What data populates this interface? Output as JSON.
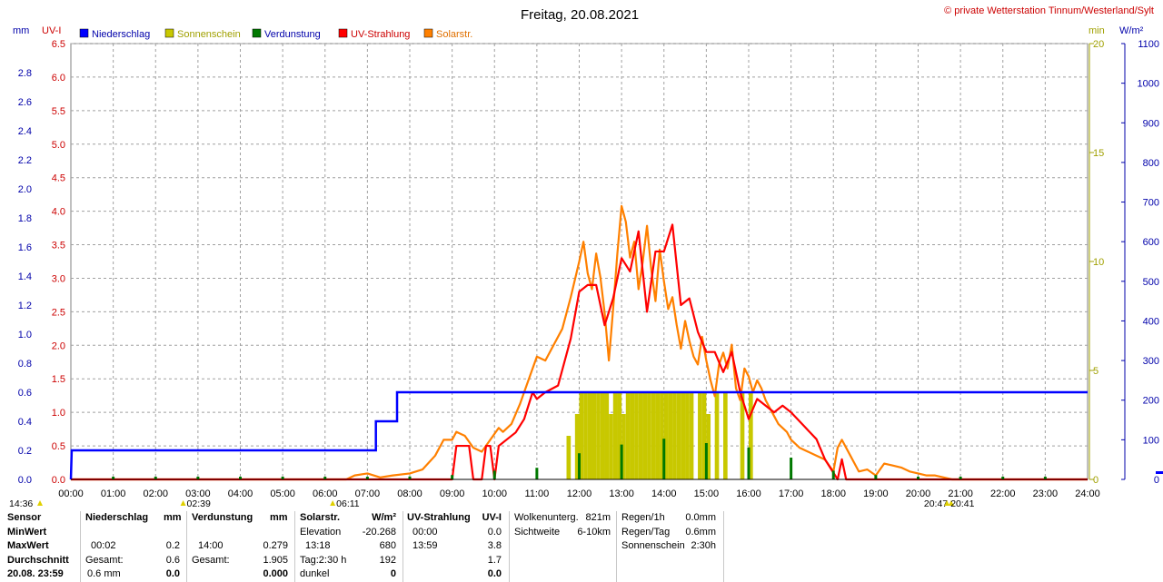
{
  "title": "Freitag, 20.08.2021",
  "copyright": "© private Wetterstation Tinnum/Westerland/Sylt",
  "units": {
    "mm": "mm",
    "uvi": "UV-I",
    "min": "min",
    "wm2": "W/m²"
  },
  "colors": {
    "rain": "#0000ff",
    "sun": "#c8c800",
    "evap": "#007800",
    "uv": "#ff0000",
    "solar": "#ff8000",
    "grid": "#a0a0a0",
    "axis_left": "#0000aa",
    "axis_uv": "#cc0000"
  },
  "legend": [
    {
      "label": "Niederschlag",
      "color": "#0000ff",
      "text_color": "#0000aa"
    },
    {
      "label": "Sonnenschein",
      "color": "#c8c800",
      "text_color": "#a0a000"
    },
    {
      "label": "Verdunstung",
      "color": "#007800",
      "text_color": "#0000aa"
    },
    {
      "label": "UV-Strahlung",
      "color": "#ff0000",
      "text_color": "#cc0000"
    },
    {
      "label": "Solarstr.",
      "color": "#ff8000",
      "text_color": "#e07000"
    }
  ],
  "markers": [
    {
      "time": "14:36",
      "pos": "left-edge"
    },
    {
      "time": "02:39",
      "at_hour": 2.65
    },
    {
      "time": "06:11",
      "at_hour": 6.18
    },
    {
      "time": "20:47",
      "at_hour": 20.78
    },
    {
      "time": "20:41",
      "at_hour": 20.68
    }
  ],
  "chart_data": {
    "type": "line",
    "x_ticks": [
      "00:00",
      "01:00",
      "02:00",
      "03:00",
      "04:00",
      "05:00",
      "06:00",
      "07:00",
      "08:00",
      "09:00",
      "10:00",
      "11:00",
      "12:00",
      "13:00",
      "14:00",
      "15:00",
      "16:00",
      "17:00",
      "18:00",
      "19:00",
      "20:00",
      "21:00",
      "22:00",
      "23:00",
      "24:00"
    ],
    "xlim": [
      0,
      24
    ],
    "axes": {
      "rain_mm": {
        "ylim": [
          0,
          3.0
        ],
        "ticks": [
          "0.0",
          "0.2",
          "0.4",
          "0.6",
          "0.8",
          "1.0",
          "1.2",
          "1.4",
          "1.6",
          "1.8",
          "2.0",
          "2.2",
          "2.4",
          "2.6",
          "2.8"
        ]
      },
      "uv_index": {
        "ylim": [
          0,
          6.5
        ],
        "ticks": [
          "0.0",
          "0.5",
          "1.0",
          "1.5",
          "2.0",
          "2.5",
          "3.0",
          "3.5",
          "4.0",
          "4.5",
          "5.0",
          "5.5",
          "6.0",
          "6.5"
        ]
      },
      "sun_min": {
        "ylim": [
          0,
          20
        ],
        "ticks": [
          "0",
          "5",
          "10",
          "15",
          "20"
        ]
      },
      "solar_wm2": {
        "ylim": [
          0,
          1100
        ],
        "ticks": [
          "0",
          "100",
          "200",
          "300",
          "400",
          "500",
          "600",
          "700",
          "800",
          "900",
          "1000",
          "1100"
        ]
      }
    },
    "series": [
      {
        "name": "Niederschlag",
        "type": "step",
        "x": [
          0,
          0.02,
          7.2,
          7.2,
          7.7,
          7.7,
          24
        ],
        "y": [
          0,
          0.2,
          0.2,
          0.4,
          0.4,
          0.6,
          0.6
        ]
      },
      {
        "name": "Solarstr.",
        "type": "line",
        "x": [
          0,
          6.5,
          6.7,
          7.0,
          7.3,
          7.6,
          8.0,
          8.3,
          8.6,
          8.8,
          9.0,
          9.1,
          9.3,
          9.5,
          9.7,
          9.9,
          10.1,
          10.2,
          10.4,
          10.6,
          10.8,
          11.0,
          11.2,
          11.4,
          11.6,
          11.8,
          12.0,
          12.1,
          12.2,
          12.3,
          12.4,
          12.5,
          12.6,
          12.7,
          12.8,
          12.9,
          13.0,
          13.1,
          13.2,
          13.3,
          13.4,
          13.5,
          13.6,
          13.7,
          13.8,
          13.9,
          14.0,
          14.1,
          14.2,
          14.3,
          14.4,
          14.5,
          14.6,
          14.7,
          14.8,
          14.9,
          15.0,
          15.1,
          15.2,
          15.3,
          15.4,
          15.5,
          15.6,
          15.7,
          15.8,
          15.9,
          16.0,
          16.1,
          16.2,
          16.3,
          16.4,
          16.5,
          16.6,
          16.7,
          16.8,
          16.9,
          17.0,
          17.2,
          17.4,
          17.6,
          17.8,
          18.0,
          18.1,
          18.2,
          18.4,
          18.6,
          18.8,
          19.0,
          19.2,
          19.4,
          19.6,
          19.8,
          20.0,
          20.2,
          20.4,
          20.6,
          20.8,
          24
        ],
        "y": [
          0,
          0,
          10,
          15,
          5,
          10,
          15,
          25,
          60,
          100,
          100,
          120,
          110,
          80,
          70,
          100,
          130,
          120,
          140,
          190,
          250,
          310,
          300,
          340,
          380,
          460,
          550,
          600,
          520,
          480,
          570,
          510,
          420,
          300,
          430,
          570,
          690,
          650,
          560,
          600,
          480,
          550,
          640,
          530,
          450,
          580,
          500,
          430,
          460,
          390,
          330,
          400,
          350,
          310,
          290,
          360,
          300,
          250,
          210,
          290,
          320,
          280,
          340,
          230,
          200,
          280,
          260,
          220,
          250,
          230,
          200,
          180,
          160,
          140,
          130,
          120,
          100,
          80,
          70,
          60,
          50,
          20,
          80,
          100,
          60,
          20,
          25,
          10,
          40,
          35,
          30,
          20,
          15,
          10,
          10,
          5,
          0,
          0
        ]
      },
      {
        "name": "UV-Strahlung",
        "type": "line",
        "x": [
          0,
          9.0,
          9.1,
          9.4,
          9.5,
          9.7,
          9.8,
          9.9,
          10.0,
          10.1,
          10.3,
          10.5,
          10.7,
          10.9,
          11.0,
          11.2,
          11.5,
          11.8,
          12.0,
          12.2,
          12.4,
          12.6,
          12.8,
          13.0,
          13.2,
          13.4,
          13.6,
          13.8,
          14.0,
          14.2,
          14.4,
          14.6,
          14.8,
          15.0,
          15.2,
          15.4,
          15.6,
          15.8,
          16.0,
          16.2,
          16.4,
          16.6,
          16.8,
          17.0,
          17.3,
          17.6,
          17.8,
          17.9,
          18.0,
          18.1,
          18.2,
          18.3,
          24
        ],
        "y": [
          0,
          0,
          0.5,
          0.5,
          0.0,
          0.0,
          0.5,
          0.5,
          0.0,
          0.5,
          0.6,
          0.7,
          0.9,
          1.3,
          1.2,
          1.3,
          1.4,
          2.1,
          2.8,
          2.9,
          2.9,
          2.3,
          2.7,
          3.3,
          3.1,
          3.7,
          2.5,
          3.4,
          3.4,
          3.8,
          2.6,
          2.7,
          2.2,
          1.9,
          1.9,
          1.6,
          1.9,
          1.3,
          0.9,
          1.2,
          1.1,
          1.0,
          1.1,
          1.0,
          0.8,
          0.6,
          0.3,
          0.2,
          0.1,
          0.0,
          0.3,
          0.0,
          0
        ]
      },
      {
        "name": "Verdunstung",
        "type": "spikes",
        "x": [
          1.0,
          2.0,
          3.0,
          4.0,
          5.0,
          6.0,
          7.0,
          8.0,
          9.0,
          10.0,
          11.0,
          12.0,
          13.0,
          14.0,
          15.0,
          16.0,
          17.0,
          18.0,
          19.0,
          20.0,
          21.0,
          22.0,
          23.0
        ],
        "y": [
          0.01,
          0.01,
          0.01,
          0.01,
          0.01,
          0.01,
          0.01,
          0.02,
          0.03,
          0.06,
          0.08,
          0.18,
          0.24,
          0.28,
          0.25,
          0.22,
          0.15,
          0.06,
          0.03,
          0.01,
          0.01,
          0.01,
          0.01
        ]
      },
      {
        "name": "Sonnenschein",
        "type": "blocks",
        "x": [
          11.7,
          11.9,
          12.0,
          12.1,
          12.2,
          12.3,
          12.4,
          12.5,
          12.6,
          12.7,
          12.8,
          12.9,
          13.0,
          13.1,
          13.2,
          13.3,
          13.4,
          13.5,
          13.6,
          13.7,
          13.8,
          13.9,
          14.0,
          14.1,
          14.2,
          14.3,
          14.4,
          14.5,
          14.6,
          14.8,
          14.9,
          15.0,
          15.2,
          15.4,
          15.8,
          16.0
        ],
        "y": [
          2,
          3,
          4,
          4,
          4,
          4,
          4,
          4,
          4,
          3,
          4,
          4,
          3,
          4,
          4,
          4,
          4,
          4,
          4,
          4,
          4,
          4,
          4,
          4,
          4,
          4,
          4,
          4,
          4,
          4,
          4,
          3,
          4,
          4,
          4,
          4
        ]
      }
    ]
  },
  "stats": {
    "headers": {
      "sensor": "Sensor",
      "rain": "Niederschlag",
      "rain_unit": "mm",
      "evap": "Verdunstung",
      "evap_unit": "mm",
      "solar": "Solarstr.",
      "solar_unit": "W/m²",
      "uv": "UV-Strahlung",
      "uv_unit": "UV-I"
    },
    "row_labels": {
      "min": "MinWert",
      "max": "MaxWert",
      "avg": "Durchschnitt",
      "date": "20.08. 23:59"
    },
    "rain": {
      "max_time": "00:02",
      "max_val": "0.2",
      "total_label": "Gesamt:",
      "total_val": "0.6",
      "last_time": "0.6 mm",
      "last_val": "0.0"
    },
    "evap": {
      "max_time": "14:00",
      "max_val": "0.279",
      "total_label": "Gesamt:",
      "total_val": "1.905",
      "last_val": "0.000"
    },
    "solar": {
      "elev_label": "Elevation",
      "elev_val": "-20.268",
      "max_time": "13:18",
      "max_val": "680",
      "day_label": "Tag:2:30 h",
      "day_val": "192",
      "dark_label": "dunkel",
      "dark_val": "0"
    },
    "uv": {
      "min_time": "00:00",
      "min_val": "0.0",
      "max_time": "13:59",
      "max_val": "3.8",
      "avg_val": "1.7",
      "last_val": "0.0"
    },
    "cloud": {
      "base_label": "Wolkenunterg.",
      "base_val": "821m",
      "vis_label": "Sichtweite",
      "vis_val": "6-10km"
    },
    "rainsum": {
      "h1_label": "Regen/1h",
      "h1_val": "0.0mm",
      "day_label": "Regen/Tag",
      "day_val": "0.6mm",
      "sun_label": "Sonnenschein",
      "sun_val": "2:30h"
    }
  }
}
